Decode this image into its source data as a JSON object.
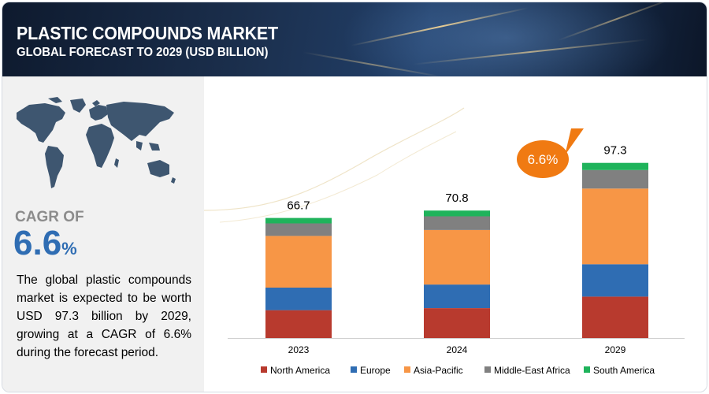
{
  "header": {
    "title": "PLASTIC COMPOUNDS MARKET",
    "subtitle": "GLOBAL FORECAST TO 2029 (USD BILLION)"
  },
  "summary": {
    "cagr_label": "CAGR OF",
    "cagr_number": "6.6",
    "cagr_suffix": "%",
    "description": "The global plastic compounds market is expected to be worth USD 97.3 billion by 2029, growing at a CAGR of 6.6% during the forecast period."
  },
  "colors": {
    "north_america": "#b83a2e",
    "europe": "#2f6db3",
    "asia_pacific": "#f79646",
    "middle_east_africa": "#808080",
    "south_america": "#1fb35b",
    "cagr_bubble": "#f07a12",
    "accent_blue": "#2f6db3"
  },
  "chart_data": {
    "type": "bar",
    "stacked": true,
    "title": "PLASTIC COMPOUNDS MARKET",
    "subtitle": "GLOBAL FORECAST TO 2029 (USD BILLION)",
    "categories": [
      "2023",
      "2024",
      "2029"
    ],
    "totals": [
      66.7,
      70.8,
      97.3
    ],
    "total_labels": [
      "66.7",
      "70.8",
      "97.3"
    ],
    "series": [
      {
        "name": "North America",
        "values": [
          15.5,
          16.6,
          23.0
        ]
      },
      {
        "name": "Europe",
        "values": [
          12.5,
          13.1,
          18.0
        ]
      },
      {
        "name": "Asia-Pacific",
        "values": [
          28.7,
          30.3,
          42.0
        ]
      },
      {
        "name": "Middle-East Africa",
        "values": [
          7.0,
          7.6,
          10.3
        ]
      },
      {
        "name": "South America",
        "values": [
          3.0,
          3.2,
          4.0
        ]
      }
    ],
    "annotation": "6.6%",
    "legend_position": "bottom",
    "ylim": [
      0,
      100
    ]
  }
}
